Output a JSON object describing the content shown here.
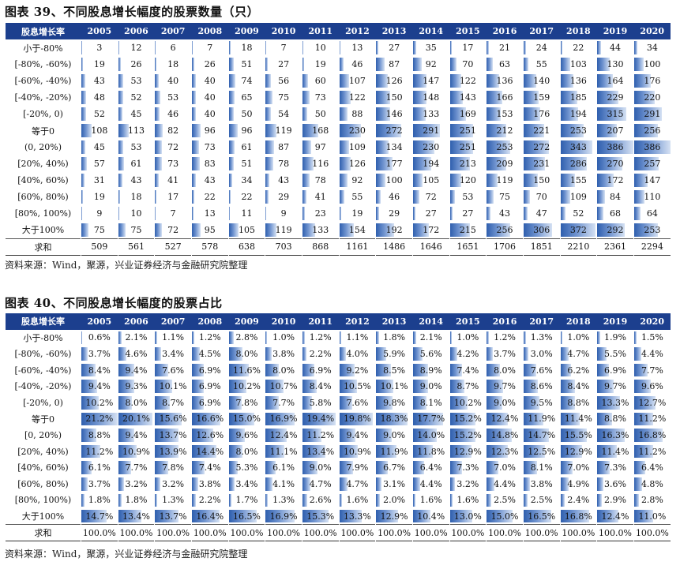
{
  "chart_data": [
    {
      "type": "table",
      "title": "图表 39、不同股息增长幅度的股票数量（只）",
      "header_label": "股息增长率",
      "years": [
        "2005",
        "2006",
        "2007",
        "2008",
        "2009",
        "2010",
        "2011",
        "2012",
        "2013",
        "2014",
        "2015",
        "2016",
        "2017",
        "2018",
        "2019",
        "2020"
      ],
      "rows": [
        {
          "label": "小于-80%",
          "values": [
            3,
            12,
            6,
            7,
            18,
            7,
            10,
            13,
            27,
            35,
            17,
            21,
            24,
            22,
            44,
            34
          ]
        },
        {
          "label": "[-80%, -60%)",
          "values": [
            19,
            26,
            18,
            26,
            51,
            27,
            19,
            46,
            87,
            92,
            70,
            63,
            55,
            103,
            130,
            100
          ]
        },
        {
          "label": "[-60%, -40%)",
          "values": [
            43,
            53,
            40,
            40,
            74,
            56,
            60,
            107,
            126,
            147,
            122,
            136,
            140,
            136,
            164,
            176
          ]
        },
        {
          "label": "[-40%, -20%)",
          "values": [
            48,
            52,
            53,
            40,
            65,
            75,
            73,
            122,
            150,
            148,
            143,
            166,
            159,
            185,
            229,
            220
          ]
        },
        {
          "label": "[-20%, 0)",
          "values": [
            52,
            45,
            46,
            40,
            50,
            54,
            50,
            88,
            146,
            133,
            169,
            153,
            176,
            194,
            315,
            291
          ]
        },
        {
          "label": "等于0",
          "values": [
            108,
            113,
            82,
            96,
            96,
            119,
            168,
            230,
            272,
            291,
            251,
            212,
            221,
            253,
            207,
            256
          ]
        },
        {
          "label": "(0, 20%)",
          "values": [
            45,
            53,
            72,
            73,
            61,
            87,
            97,
            109,
            134,
            230,
            251,
            253,
            272,
            343,
            386,
            386
          ]
        },
        {
          "label": "[20%, 40%)",
          "values": [
            57,
            61,
            73,
            83,
            51,
            78,
            116,
            126,
            177,
            194,
            213,
            209,
            231,
            286,
            270,
            257
          ]
        },
        {
          "label": "[40%, 60%)",
          "values": [
            31,
            43,
            41,
            43,
            34,
            43,
            78,
            92,
            100,
            105,
            120,
            119,
            150,
            155,
            172,
            147
          ]
        },
        {
          "label": "[60%, 80%)",
          "values": [
            19,
            18,
            17,
            22,
            22,
            29,
            41,
            55,
            46,
            72,
            53,
            75,
            70,
            109,
            84,
            110
          ]
        },
        {
          "label": "[80%, 100%)",
          "values": [
            9,
            10,
            7,
            13,
            11,
            9,
            23,
            19,
            29,
            27,
            27,
            43,
            47,
            52,
            68,
            64
          ]
        },
        {
          "label": "大于100%",
          "values": [
            75,
            75,
            72,
            95,
            105,
            119,
            133,
            154,
            192,
            172,
            215,
            256,
            306,
            372,
            292,
            253
          ]
        }
      ],
      "total": {
        "label": "求和",
        "values": [
          509,
          561,
          527,
          578,
          638,
          703,
          868,
          1161,
          1486,
          1646,
          1651,
          1706,
          1851,
          2210,
          2361,
          2294
        ]
      },
      "bar_max": 386,
      "source": "资料来源：Wind，聚源，兴业证券经济与金融研究院整理"
    },
    {
      "type": "table",
      "title": "图表 40、不同股息增长幅度的股票占比",
      "header_label": "股息增长率",
      "years": [
        "2005",
        "2006",
        "2007",
        "2008",
        "2009",
        "2010",
        "2011",
        "2012",
        "2013",
        "2014",
        "2015",
        "2016",
        "2017",
        "2018",
        "2019",
        "2020"
      ],
      "rows": [
        {
          "label": "小于-80%",
          "values": [
            "0.6%",
            "2.1%",
            "1.1%",
            "1.2%",
            "2.8%",
            "1.0%",
            "1.2%",
            "1.1%",
            "1.8%",
            "2.1%",
            "1.0%",
            "1.2%",
            "1.3%",
            "1.0%",
            "1.9%",
            "1.5%"
          ]
        },
        {
          "label": "[-80%, -60%)",
          "values": [
            "3.7%",
            "4.6%",
            "3.4%",
            "4.5%",
            "8.0%",
            "3.8%",
            "2.2%",
            "4.0%",
            "5.9%",
            "5.6%",
            "4.2%",
            "3.7%",
            "3.0%",
            "4.7%",
            "5.5%",
            "4.4%"
          ]
        },
        {
          "label": "[-60%, -40%)",
          "values": [
            "8.4%",
            "9.4%",
            "7.6%",
            "6.9%",
            "11.6%",
            "8.0%",
            "6.9%",
            "9.2%",
            "8.5%",
            "8.9%",
            "7.4%",
            "8.0%",
            "7.6%",
            "6.2%",
            "6.9%",
            "7.7%"
          ]
        },
        {
          "label": "[-40%, -20%)",
          "values": [
            "9.4%",
            "9.3%",
            "10.1%",
            "6.9%",
            "10.2%",
            "10.7%",
            "8.4%",
            "10.5%",
            "10.1%",
            "9.0%",
            "8.7%",
            "9.7%",
            "8.6%",
            "8.4%",
            "9.7%",
            "9.6%"
          ]
        },
        {
          "label": "[-20%, 0)",
          "values": [
            "10.2%",
            "8.0%",
            "8.7%",
            "6.9%",
            "7.8%",
            "7.7%",
            "5.8%",
            "7.6%",
            "9.8%",
            "8.1%",
            "10.2%",
            "9.0%",
            "9.5%",
            "8.8%",
            "13.3%",
            "12.7%"
          ]
        },
        {
          "label": "等于0",
          "values": [
            "21.2%",
            "20.1%",
            "15.6%",
            "16.6%",
            "15.0%",
            "16.9%",
            "19.4%",
            "19.8%",
            "18.3%",
            "17.7%",
            "15.2%",
            "12.4%",
            "11.9%",
            "11.4%",
            "8.8%",
            "11.2%"
          ]
        },
        {
          "label": "[0, 20%)",
          "values": [
            "8.8%",
            "9.4%",
            "13.7%",
            "12.6%",
            "9.6%",
            "12.4%",
            "11.2%",
            "9.4%",
            "9.0%",
            "14.0%",
            "15.2%",
            "14.8%",
            "14.7%",
            "15.5%",
            "16.3%",
            "16.8%"
          ]
        },
        {
          "label": "[20%, 40%)",
          "values": [
            "11.2%",
            "10.9%",
            "13.9%",
            "14.4%",
            "8.0%",
            "11.1%",
            "13.4%",
            "10.9%",
            "11.9%",
            "11.8%",
            "12.9%",
            "12.3%",
            "12.5%",
            "12.9%",
            "11.4%",
            "11.2%"
          ]
        },
        {
          "label": "[40%, 60%)",
          "values": [
            "6.1%",
            "7.7%",
            "7.8%",
            "7.4%",
            "5.3%",
            "6.1%",
            "9.0%",
            "7.9%",
            "6.7%",
            "6.4%",
            "7.3%",
            "7.0%",
            "8.1%",
            "7.0%",
            "7.3%",
            "6.4%"
          ]
        },
        {
          "label": "[60%, 80%)",
          "values": [
            "3.7%",
            "3.2%",
            "3.2%",
            "3.8%",
            "3.4%",
            "4.1%",
            "4.7%",
            "4.7%",
            "3.1%",
            "4.4%",
            "3.2%",
            "4.4%",
            "3.8%",
            "4.9%",
            "3.6%",
            "4.8%"
          ]
        },
        {
          "label": "[80%, 100%)",
          "values": [
            "1.8%",
            "1.8%",
            "1.3%",
            "2.2%",
            "1.7%",
            "1.3%",
            "2.6%",
            "1.6%",
            "2.0%",
            "1.6%",
            "1.6%",
            "2.5%",
            "2.5%",
            "2.4%",
            "2.9%",
            "2.8%"
          ]
        },
        {
          "label": "大于100%",
          "values": [
            "14.7%",
            "13.4%",
            "13.7%",
            "16.4%",
            "16.5%",
            "16.9%",
            "15.3%",
            "13.3%",
            "12.9%",
            "10.4%",
            "13.0%",
            "15.0%",
            "16.5%",
            "16.8%",
            "12.4%",
            "11.0%"
          ]
        }
      ],
      "total": {
        "label": "求和",
        "values": [
          "100.0%",
          "100.0%",
          "100.0%",
          "100.0%",
          "100.0%",
          "100.0%",
          "100.0%",
          "100.0%",
          "100.0%",
          "100.0%",
          "100.0%",
          "100.0%",
          "100.0%",
          "100.0%",
          "100.0%",
          "100.0%"
        ]
      },
      "bar_max": 21.2,
      "source": "资料来源：Wind，聚源，兴业证券经济与金融研究院整理"
    }
  ]
}
